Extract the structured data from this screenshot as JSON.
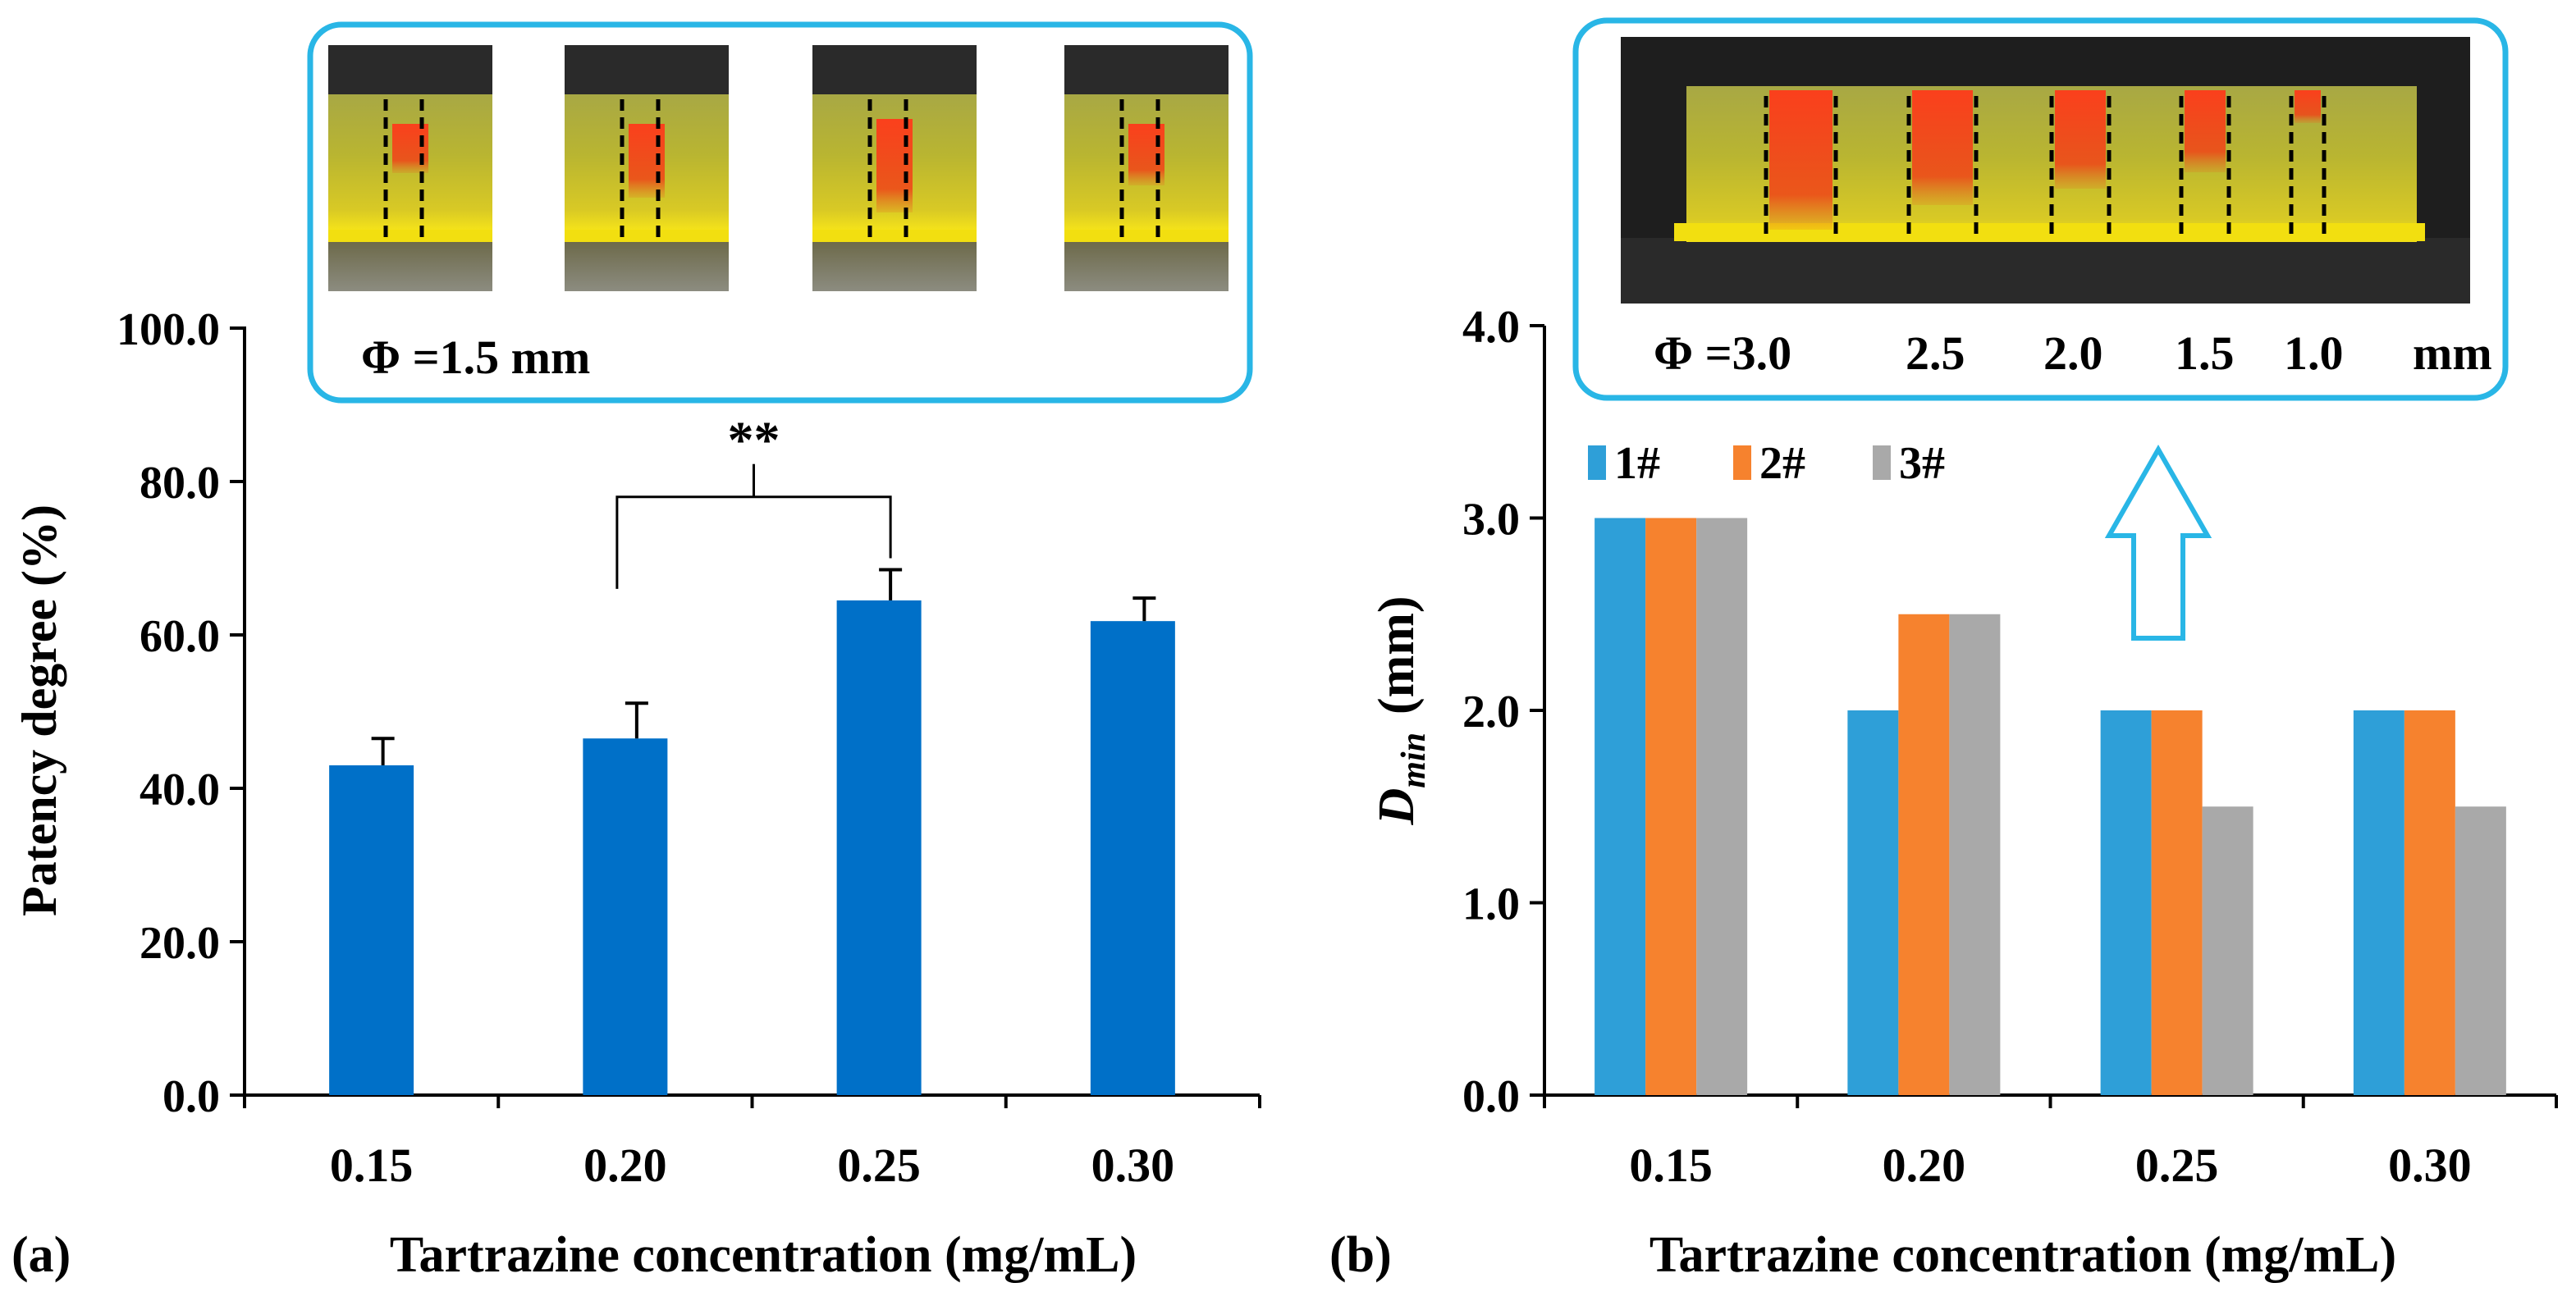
{
  "chart_data": [
    {
      "panel": "(a)",
      "type": "bar",
      "categories": [
        "0.15",
        "0.20",
        "0.25",
        "0.30"
      ],
      "values": [
        43.0,
        46.5,
        64.5,
        61.8
      ],
      "errors": [
        3.5,
        4.6,
        4.0,
        3.0
      ],
      "xlabel": "Tartrazine concentration (mg/mL)",
      "ylabel": "Patency degree (%)",
      "ylim": [
        0,
        100
      ],
      "yticks": [
        "0.0",
        "20.0",
        "40.0",
        "60.0",
        "80.0",
        "100.0"
      ],
      "bar_color": "#0070c8",
      "significance": {
        "from": "0.20",
        "to": "0.25",
        "label": "**"
      },
      "inset": {
        "label": "Φ =1.5 mm",
        "border_color": "#29b6e6"
      }
    },
    {
      "panel": "(b)",
      "type": "bar",
      "categories": [
        "0.15",
        "0.20",
        "0.25",
        "0.30"
      ],
      "series": [
        {
          "name": "1#",
          "values": [
            3.0,
            2.0,
            2.0,
            2.0
          ],
          "color": "#2e9fd8"
        },
        {
          "name": "2#",
          "values": [
            3.0,
            2.5,
            2.0,
            2.0
          ],
          "color": "#f6822e"
        },
        {
          "name": "3#",
          "values": [
            3.0,
            2.5,
            1.5,
            1.5
          ],
          "color": "#a9a9a9"
        }
      ],
      "xlabel": "Tartrazine concentration (mg/mL)",
      "ylabel_main": "D",
      "ylabel_sub": "min",
      "ylabel_unit": "(mm)",
      "ylim": [
        0,
        4
      ],
      "yticks": [
        "0.0",
        "1.0",
        "2.0",
        "3.0",
        "4.0"
      ],
      "legend_position": "top-left",
      "inset": {
        "labels": [
          "Φ =3.0",
          "2.5",
          "2.0",
          "1.5",
          "1.0",
          "mm"
        ],
        "border_color": "#29b6e6"
      }
    }
  ]
}
